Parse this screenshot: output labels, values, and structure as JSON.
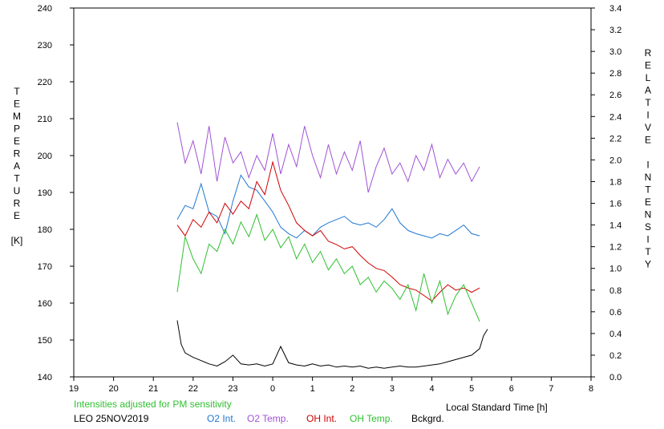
{
  "chart_data": {
    "type": "line",
    "footer_note": "Intensities adjusted for PM sensitivity",
    "station_date": "LEO 25NOV2019",
    "xlabel": "Local Standard Time [h]",
    "ylabel_left_letters": [
      "T",
      "E",
      "M",
      "P",
      "E",
      "R",
      "A",
      "T",
      "U",
      "R",
      "E",
      "",
      "[K]"
    ],
    "ylabel_right_letters": [
      "R",
      "E",
      "L",
      "A",
      "T",
      "I",
      "V",
      "E",
      "",
      "I",
      "N",
      "T",
      "E",
      "N",
      "S",
      "I",
      "T",
      "Y"
    ],
    "x_ticks": [
      "19",
      "20",
      "21",
      "22",
      "23",
      "0",
      "1",
      "2",
      "3",
      "4",
      "5",
      "6",
      "7",
      "8"
    ],
    "x_range": [
      19,
      32
    ],
    "y_left_ticks": [
      "140",
      "150",
      "160",
      "170",
      "180",
      "190",
      "200",
      "210",
      "220",
      "230",
      "240"
    ],
    "y_left_range": [
      140,
      240
    ],
    "y_right_ticks": [
      "0.0",
      "0.2",
      "0.4",
      "0.6",
      "0.8",
      "1.0",
      "1.2",
      "1.4",
      "1.6",
      "1.8",
      "2.0",
      "2.2",
      "2.4",
      "2.6",
      "2.8",
      "3.0",
      "3.2",
      "3.4"
    ],
    "y_right_range": [
      0,
      3.4
    ],
    "grid": false,
    "colors": {
      "o2_int": "#1f77d4",
      "o2_temp": "#a052d6",
      "oh_int": "#d00000",
      "oh_temp": "#30c030",
      "bckgrd": "#000000",
      "note": "#30c030"
    },
    "series": [
      {
        "name": "O2 Int.",
        "axis": "right",
        "x": [
          21.6,
          21.8,
          22.0,
          22.2,
          22.4,
          22.6,
          22.8,
          23.0,
          23.2,
          23.4,
          23.6,
          23.8,
          24.0,
          24.2,
          24.4,
          24.6,
          24.8,
          25.0,
          25.2,
          25.4,
          25.6,
          25.8,
          26.0,
          26.2,
          26.4,
          26.6,
          26.8,
          27.0,
          27.2,
          27.4,
          27.6,
          27.8,
          28.0,
          28.2,
          28.4,
          28.6,
          28.8,
          29.0,
          29.2
        ],
        "values": [
          1.45,
          1.58,
          1.55,
          1.78,
          1.52,
          1.48,
          1.32,
          1.62,
          1.86,
          1.75,
          1.72,
          1.62,
          1.52,
          1.38,
          1.32,
          1.28,
          1.35,
          1.3,
          1.38,
          1.42,
          1.45,
          1.48,
          1.42,
          1.4,
          1.42,
          1.38,
          1.45,
          1.55,
          1.42,
          1.35,
          1.32,
          1.3,
          1.28,
          1.32,
          1.3,
          1.35,
          1.4,
          1.32,
          1.3
        ]
      },
      {
        "name": "O2 Temp.",
        "axis": "left",
        "x": [
          21.6,
          21.8,
          22.0,
          22.2,
          22.4,
          22.6,
          22.8,
          23.0,
          23.2,
          23.4,
          23.6,
          23.8,
          24.0,
          24.2,
          24.4,
          24.6,
          24.8,
          25.0,
          25.2,
          25.4,
          25.6,
          25.8,
          26.0,
          26.2,
          26.4,
          26.6,
          26.8,
          27.0,
          27.2,
          27.4,
          27.6,
          27.8,
          28.0,
          28.2,
          28.4,
          28.6,
          28.8,
          29.0,
          29.2
        ],
        "values": [
          209,
          198,
          204,
          195,
          208,
          193,
          205,
          198,
          201,
          194,
          200,
          196,
          206,
          195,
          203,
          197,
          208,
          200,
          194,
          203,
          195,
          201,
          196,
          204,
          190,
          197,
          202,
          195,
          198,
          193,
          200,
          196,
          203,
          194,
          199,
          195,
          198,
          193,
          197
        ]
      },
      {
        "name": "OH Int.",
        "axis": "right",
        "x": [
          21.6,
          21.8,
          22.0,
          22.2,
          22.4,
          22.6,
          22.8,
          23.0,
          23.2,
          23.4,
          23.6,
          23.8,
          24.0,
          24.2,
          24.4,
          24.6,
          24.8,
          25.0,
          25.2,
          25.4,
          25.6,
          25.8,
          26.0,
          26.2,
          26.4,
          26.6,
          26.8,
          27.0,
          27.2,
          27.4,
          27.6,
          27.8,
          28.0,
          28.2,
          28.4,
          28.6,
          28.8,
          29.0,
          29.2
        ],
        "values": [
          1.4,
          1.3,
          1.45,
          1.38,
          1.52,
          1.42,
          1.6,
          1.5,
          1.62,
          1.55,
          1.8,
          1.68,
          1.98,
          1.72,
          1.58,
          1.42,
          1.35,
          1.3,
          1.35,
          1.25,
          1.22,
          1.18,
          1.2,
          1.12,
          1.05,
          1.0,
          0.98,
          0.92,
          0.85,
          0.82,
          0.8,
          0.75,
          0.7,
          0.78,
          0.85,
          0.8,
          0.82,
          0.78,
          0.82
        ]
      },
      {
        "name": "OH Temp.",
        "axis": "left",
        "x": [
          21.6,
          21.8,
          22.0,
          22.2,
          22.4,
          22.6,
          22.8,
          23.0,
          23.2,
          23.4,
          23.6,
          23.8,
          24.0,
          24.2,
          24.4,
          24.6,
          24.8,
          25.0,
          25.2,
          25.4,
          25.6,
          25.8,
          26.0,
          26.2,
          26.4,
          26.6,
          26.8,
          27.0,
          27.2,
          27.4,
          27.6,
          27.8,
          28.0,
          28.2,
          28.4,
          28.6,
          28.8,
          29.0,
          29.2
        ],
        "values": [
          163,
          178,
          172,
          168,
          176,
          174,
          180,
          176,
          182,
          178,
          184,
          177,
          180,
          175,
          178,
          172,
          176,
          171,
          174,
          169,
          172,
          168,
          170,
          165,
          167,
          163,
          166,
          164,
          161,
          165,
          158,
          168,
          160,
          166,
          157,
          162,
          165,
          160,
          155
        ]
      },
      {
        "name": "Bckgrd.",
        "axis": "right",
        "x": [
          21.6,
          21.7,
          21.8,
          22.0,
          22.2,
          22.4,
          22.6,
          22.8,
          23.0,
          23.2,
          23.4,
          23.6,
          23.8,
          24.0,
          24.2,
          24.4,
          24.6,
          24.8,
          25.0,
          25.2,
          25.4,
          25.6,
          25.8,
          26.0,
          26.2,
          26.4,
          26.6,
          26.8,
          27.0,
          27.2,
          27.4,
          27.6,
          27.8,
          28.0,
          28.2,
          28.4,
          28.6,
          28.8,
          29.0,
          29.2,
          29.3,
          29.4
        ],
        "values": [
          0.52,
          0.3,
          0.22,
          0.18,
          0.15,
          0.12,
          0.1,
          0.14,
          0.2,
          0.12,
          0.11,
          0.12,
          0.1,
          0.12,
          0.28,
          0.13,
          0.11,
          0.1,
          0.12,
          0.1,
          0.11,
          0.09,
          0.1,
          0.09,
          0.1,
          0.08,
          0.09,
          0.08,
          0.09,
          0.1,
          0.09,
          0.09,
          0.1,
          0.11,
          0.12,
          0.14,
          0.16,
          0.18,
          0.2,
          0.26,
          0.38,
          0.44
        ]
      }
    ]
  }
}
